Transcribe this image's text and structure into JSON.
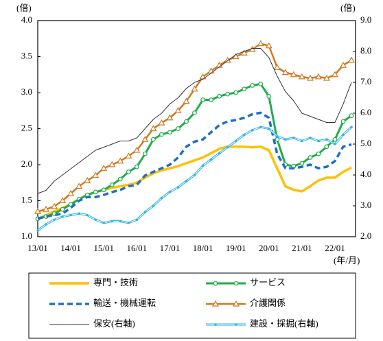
{
  "chart_data": {
    "type": "line",
    "y_unit": "(倍)",
    "y2_unit": "(倍)",
    "x_unit": "(年/月)",
    "categories": [
      "13/01",
      null,
      null,
      null,
      "14/01",
      null,
      null,
      null,
      "15/01",
      null,
      null,
      null,
      "16/01",
      null,
      null,
      null,
      "17/01",
      null,
      null,
      null,
      "18/01",
      null,
      null,
      null,
      "19/01",
      null,
      null,
      null,
      "20/01",
      null,
      null,
      null,
      "21/01",
      null,
      null,
      null,
      "22/01",
      null,
      null
    ],
    "ylim": [
      1.0,
      4.0
    ],
    "yticks": [
      {
        "value": 1.0,
        "label": "1.0"
      },
      {
        "value": 1.5,
        "label": "1.5"
      },
      {
        "value": 2.0,
        "label": "2.0"
      },
      {
        "value": 2.5,
        "label": "2.5"
      },
      {
        "value": 3.0,
        "label": "3.0"
      },
      {
        "value": 3.5,
        "label": "3.5"
      },
      {
        "value": 4.0,
        "label": "4.0"
      }
    ],
    "y2lim": [
      2.0,
      9.0
    ],
    "y2ticks": [
      {
        "value": 2.0,
        "label": "2.0"
      },
      {
        "value": 3.0,
        "label": "3.0"
      },
      {
        "value": 4.0,
        "label": "4.0"
      },
      {
        "value": 5.0,
        "label": "5.0"
      },
      {
        "value": 6.0,
        "label": "6.0"
      },
      {
        "value": 7.0,
        "label": "7.0"
      },
      {
        "value": 8.0,
        "label": "8.0"
      },
      {
        "value": 9.0,
        "label": "9.0"
      }
    ],
    "series": [
      {
        "name": "専門・技術",
        "color": "#ffc000",
        "width": 3.5,
        "values": [
          1.25,
          1.3,
          1.35,
          1.4,
          1.45,
          1.52,
          1.58,
          1.62,
          1.65,
          1.68,
          1.7,
          1.72,
          1.75,
          1.82,
          1.88,
          1.92,
          1.95,
          1.98,
          2.02,
          2.06,
          2.1,
          2.16,
          2.22,
          2.25,
          2.25,
          2.25,
          2.24,
          2.25,
          2.2,
          1.95,
          1.7,
          1.65,
          1.63,
          1.7,
          1.78,
          1.82,
          1.82,
          1.9,
          1.96
        ]
      },
      {
        "name": "サービス",
        "color": "#1fad4b",
        "width": 3,
        "marker": "circle",
        "values": [
          1.25,
          1.28,
          1.32,
          1.38,
          1.45,
          1.52,
          1.58,
          1.62,
          1.65,
          1.72,
          1.8,
          1.9,
          1.97,
          2.15,
          2.35,
          2.42,
          2.45,
          2.5,
          2.6,
          2.72,
          2.9,
          2.9,
          2.95,
          2.98,
          3.0,
          3.05,
          3.1,
          3.12,
          2.95,
          2.35,
          2.0,
          1.98,
          2.02,
          2.1,
          2.15,
          2.25,
          2.35,
          2.6,
          2.68
        ]
      },
      {
        "name": "輸送・機械運転",
        "color": "#1f6fc5",
        "width": 3.5,
        "dash": true,
        "values": [
          1.25,
          1.28,
          1.3,
          1.32,
          1.4,
          1.5,
          1.55,
          1.55,
          1.58,
          1.62,
          1.65,
          1.7,
          1.72,
          1.85,
          1.9,
          1.95,
          2.0,
          2.1,
          2.25,
          2.32,
          2.35,
          2.45,
          2.55,
          2.6,
          2.62,
          2.65,
          2.7,
          2.72,
          2.65,
          2.15,
          1.95,
          1.95,
          1.97,
          2.0,
          1.95,
          1.97,
          2.05,
          2.25,
          2.28
        ]
      },
      {
        "name": "介護関係",
        "color": "#d2781e",
        "width": 2.5,
        "marker": "triangle",
        "values": [
          1.35,
          1.38,
          1.42,
          1.5,
          1.6,
          1.7,
          1.78,
          1.85,
          1.95,
          2.0,
          2.05,
          2.12,
          2.2,
          2.35,
          2.5,
          2.58,
          2.65,
          2.75,
          2.88,
          3.05,
          3.22,
          3.3,
          3.38,
          3.45,
          3.5,
          3.55,
          3.6,
          3.68,
          3.65,
          3.35,
          3.28,
          3.25,
          3.22,
          3.2,
          3.22,
          3.2,
          3.25,
          3.38,
          3.45
        ]
      },
      {
        "name": "保安(右軸)",
        "color": "#333333",
        "width": 1,
        "axis": "y2",
        "values": [
          3.4,
          3.5,
          3.8,
          4.0,
          4.2,
          4.4,
          4.6,
          4.8,
          4.9,
          5.0,
          5.1,
          5.1,
          5.2,
          5.5,
          5.8,
          6.0,
          6.3,
          6.5,
          6.8,
          7.0,
          7.1,
          7.3,
          7.5,
          7.7,
          7.9,
          8.0,
          8.1,
          8.1,
          7.8,
          7.2,
          6.7,
          6.4,
          6.0,
          5.9,
          5.8,
          5.7,
          5.7,
          6.3,
          7.0
        ]
      },
      {
        "name": "建設・採掘(右軸)",
        "color": "#2eb4ea",
        "width": 3,
        "double": true,
        "marker": "dot",
        "axis": "y2",
        "values": [
          2.2,
          2.4,
          2.55,
          2.65,
          2.7,
          2.75,
          2.7,
          2.55,
          2.45,
          2.5,
          2.5,
          2.45,
          2.55,
          2.8,
          3.0,
          3.25,
          3.45,
          3.6,
          3.8,
          4.0,
          4.3,
          4.5,
          4.7,
          4.9,
          5.1,
          5.3,
          5.45,
          5.55,
          5.5,
          5.25,
          5.15,
          5.2,
          5.1,
          5.2,
          5.1,
          5.15,
          5.0,
          5.3,
          5.55
        ]
      }
    ]
  }
}
